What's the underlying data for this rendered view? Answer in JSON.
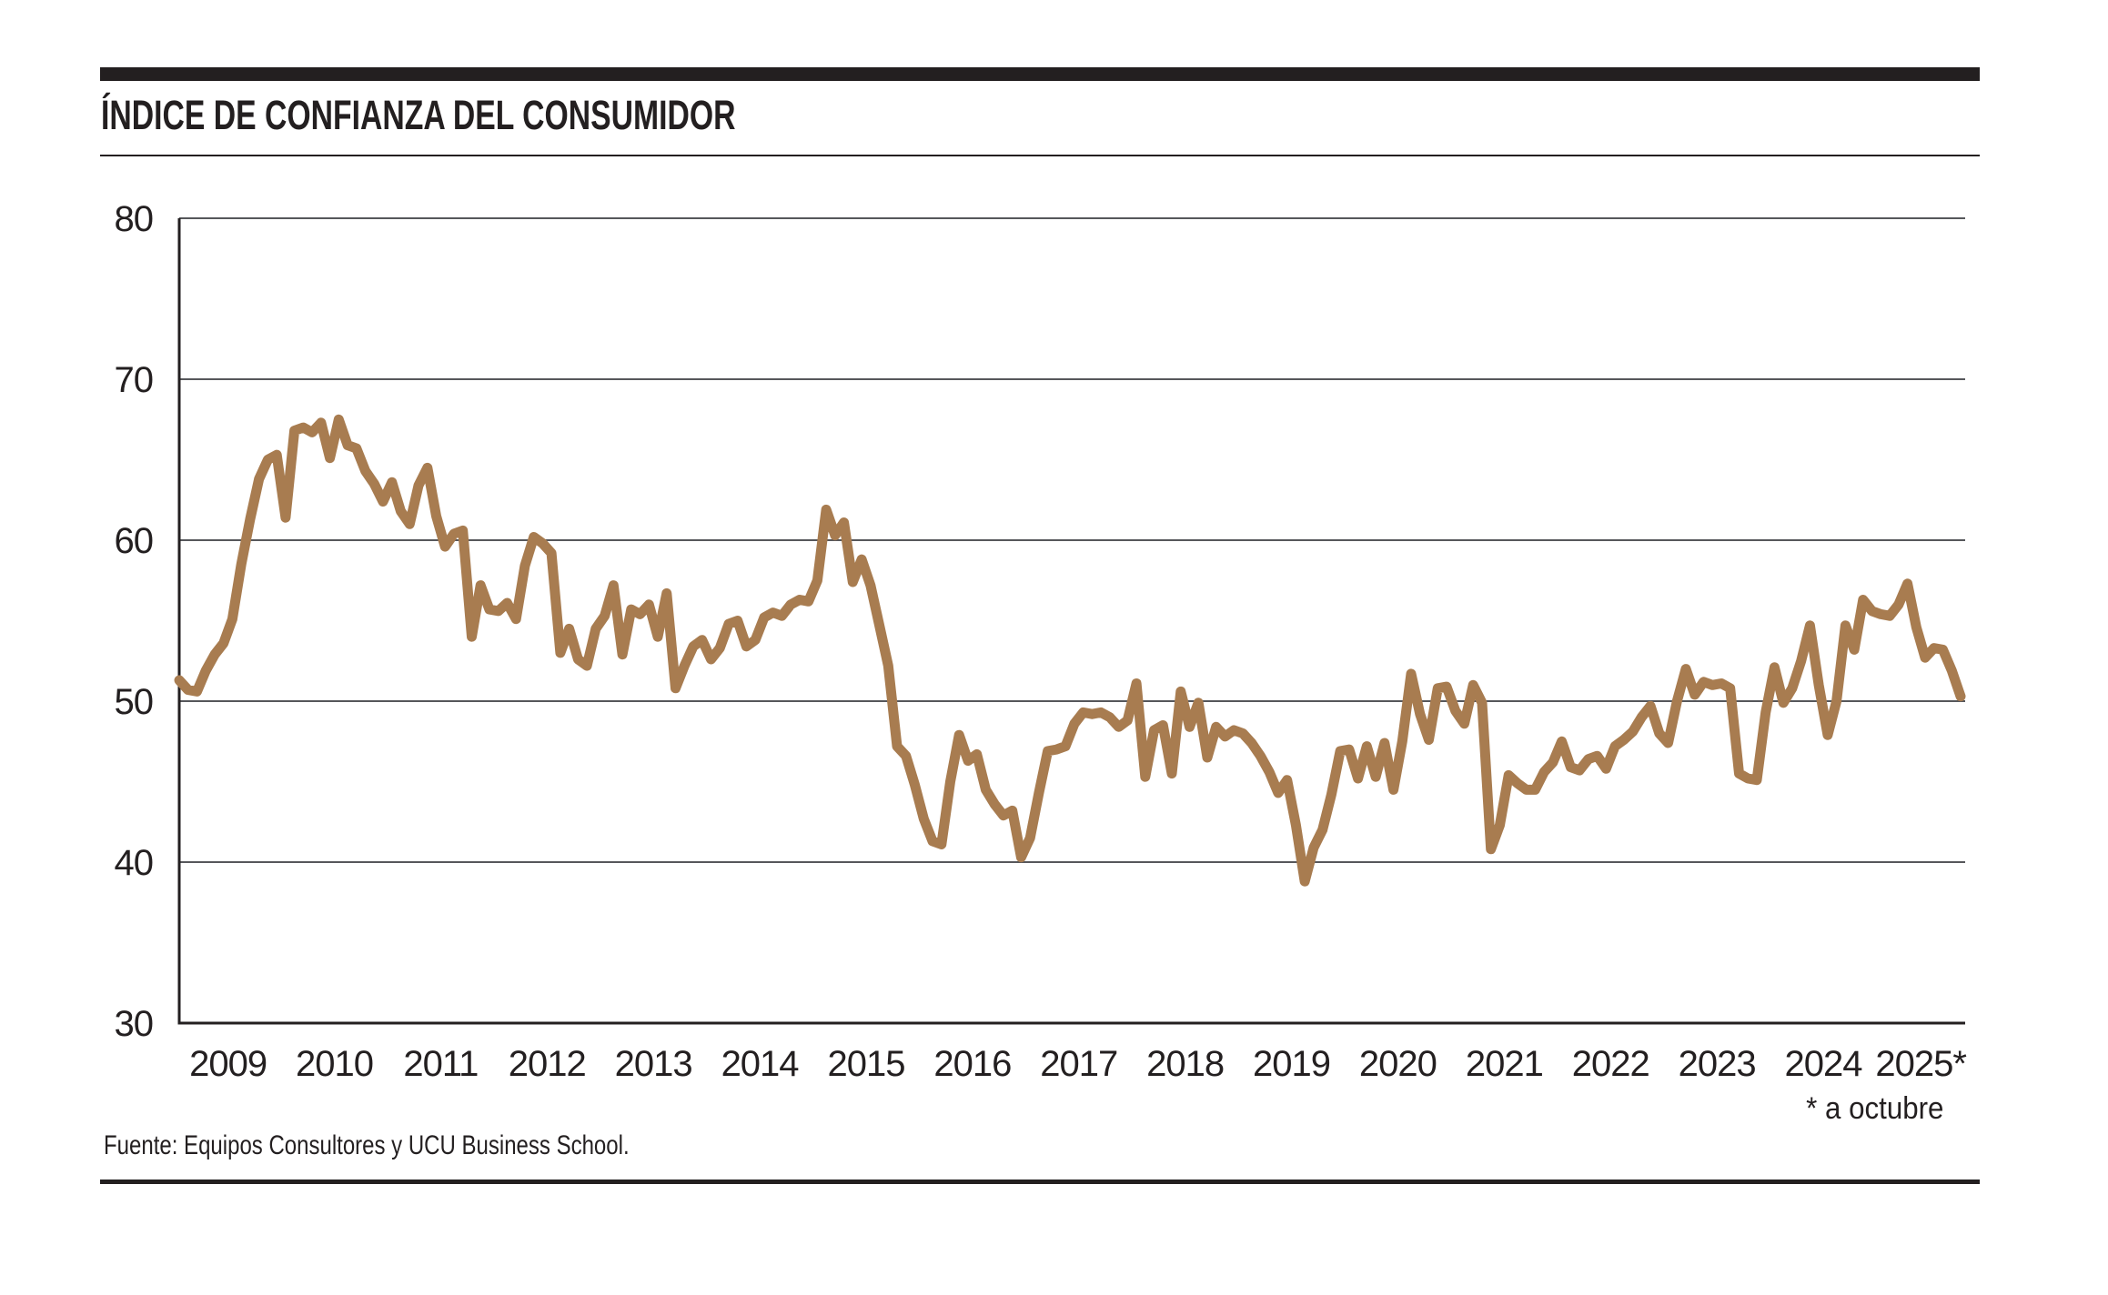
{
  "header": {
    "title": "ÍNDICE DE CONFIANZA DEL CONSUMIDOR"
  },
  "footer": {
    "source": "Fuente: Equipos Consultores y UCU Business School."
  },
  "colors": {
    "ink": "#231F20",
    "grid": "#56575B",
    "accent_line": "#A87C50"
  },
  "chart_data": {
    "type": "line",
    "title": "ÍNDICE DE CONFIANZA DEL CONSUMIDOR",
    "xlabel": "",
    "ylabel": "",
    "x_start": "2009-01",
    "x_end": "2025-10",
    "x_freq": "monthly",
    "x_tick_labels": [
      "2009",
      "2010",
      "2011",
      "2012",
      "2013",
      "2014",
      "2015",
      "2016",
      "2017",
      "2018",
      "2019",
      "2020",
      "2021",
      "2022",
      "2023",
      "2024",
      "2025*"
    ],
    "footnote": "* a octubre",
    "y_ticks": [
      80,
      70,
      60,
      50,
      40,
      30
    ],
    "ylim": [
      30,
      80
    ],
    "grid": true,
    "legend_position": "none",
    "line_color": "#A87C50",
    "series": [
      {
        "name": "Índice de confianza del consumidor",
        "values": [
          51.3,
          50.7,
          50.6,
          51.9,
          52.9,
          53.6,
          55.1,
          58.5,
          61.3,
          63.8,
          65.0,
          65.3,
          61.4,
          66.8,
          67.0,
          66.7,
          67.3,
          65.1,
          67.5,
          65.9,
          65.7,
          64.3,
          63.5,
          62.4,
          63.6,
          61.8,
          61.0,
          63.4,
          64.5,
          61.5,
          59.6,
          60.4,
          60.6,
          54.0,
          57.2,
          55.7,
          55.6,
          56.1,
          55.1,
          58.4,
          60.2,
          59.8,
          59.2,
          53.0,
          54.5,
          52.6,
          52.2,
          54.5,
          55.3,
          57.2,
          52.9,
          55.7,
          55.4,
          56.0,
          54.0,
          56.7,
          50.8,
          52.2,
          53.4,
          53.8,
          52.6,
          53.3,
          54.8,
          55.0,
          53.4,
          53.8,
          55.2,
          55.5,
          55.3,
          56.0,
          56.3,
          56.2,
          57.5,
          61.9,
          60.3,
          61.1,
          57.4,
          58.8,
          57.2,
          54.7,
          52.2,
          47.2,
          46.6,
          44.8,
          42.7,
          41.3,
          41.1,
          45.0,
          47.9,
          46.3,
          46.7,
          44.5,
          43.6,
          42.9,
          43.2,
          40.3,
          41.5,
          44.3,
          46.9,
          47.0,
          47.2,
          48.6,
          49.3,
          49.2,
          49.3,
          49.0,
          48.4,
          48.8,
          51.1,
          45.3,
          48.2,
          48.5,
          45.5,
          50.6,
          48.4,
          49.9,
          46.5,
          48.4,
          47.8,
          48.2,
          48.0,
          47.4,
          46.6,
          45.6,
          44.3,
          45.1,
          42.3,
          38.8,
          40.9,
          42.0,
          44.2,
          46.9,
          47.0,
          45.2,
          47.2,
          45.3,
          47.4,
          44.5,
          47.5,
          51.7,
          49.2,
          47.6,
          50.8,
          50.9,
          49.4,
          48.6,
          51.0,
          49.9,
          40.8,
          42.3,
          45.4,
          44.9,
          44.5,
          44.5,
          45.6,
          46.2,
          47.5,
          45.9,
          45.7,
          46.4,
          46.6,
          45.8,
          47.2,
          47.6,
          48.1,
          49.0,
          49.7,
          48.0,
          47.4,
          50.0,
          52.0,
          50.4,
          51.2,
          51.0,
          51.1,
          50.8,
          45.5,
          45.2,
          45.1,
          49.3,
          52.1,
          49.9,
          50.8,
          52.5,
          54.7,
          51.0,
          47.9,
          50.0,
          54.7,
          53.2,
          56.3,
          55.6,
          55.4,
          55.3,
          56.0,
          57.3,
          54.6,
          52.7,
          53.3,
          53.2,
          51.9,
          50.3
        ]
      }
    ]
  }
}
